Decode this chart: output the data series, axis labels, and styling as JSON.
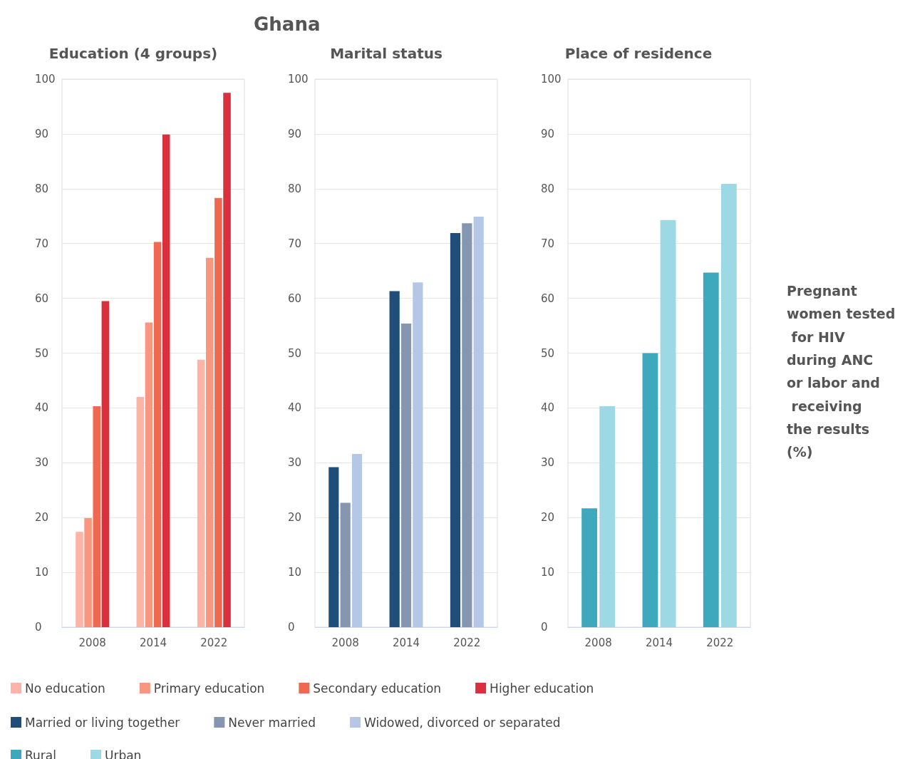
{
  "chart_data": [
    {
      "type": "bar",
      "title": "Education (4 groups)",
      "annotations": [
        "Ghana"
      ],
      "categories": [
        "2008",
        "2014",
        "2022"
      ],
      "series": [
        {
          "name": "No education",
          "color": "#fbb4a5",
          "values": [
            17.4,
            42.0,
            48.8
          ]
        },
        {
          "name": "Primary education",
          "color": "#f9967f",
          "values": [
            19.9,
            55.6,
            67.4
          ]
        },
        {
          "name": "Secondary education",
          "color": "#f0684f",
          "values": [
            40.3,
            70.3,
            78.3
          ]
        },
        {
          "name": "Higher education",
          "color": "#da2f3c",
          "values": [
            59.5,
            89.9,
            97.5
          ]
        }
      ],
      "ylim": [
        0,
        100
      ],
      "yticks": [
        0,
        10,
        20,
        30,
        40,
        50,
        60,
        70,
        80,
        90,
        100
      ],
      "grid": "y",
      "legend": "bottom"
    },
    {
      "type": "bar",
      "title": "Marital status",
      "categories": [
        "2008",
        "2014",
        "2022"
      ],
      "series": [
        {
          "name": "Married or living together",
          "color": "#1f4e79",
          "values": [
            29.2,
            61.3,
            71.9
          ]
        },
        {
          "name": "Never married",
          "color": "#8496b0",
          "values": [
            22.7,
            55.4,
            73.7
          ]
        },
        {
          "name": "Widowed, divorced or separated",
          "color": "#b4c7e7",
          "values": [
            31.6,
            62.9,
            74.9
          ]
        }
      ],
      "ylim": [
        0,
        100
      ],
      "yticks": [
        0,
        10,
        20,
        30,
        40,
        50,
        60,
        70,
        80,
        90,
        100
      ],
      "grid": "y",
      "legend": "bottom"
    },
    {
      "type": "bar",
      "title": "Place of residence",
      "annotations": [
        "Pregnant women tested for HIV during ANC or labor and receiving the results (%)"
      ],
      "categories": [
        "2008",
        "2014",
        "2022"
      ],
      "series": [
        {
          "name": "Rural",
          "color": "#3ea8bc",
          "values": [
            21.7,
            50.0,
            64.7
          ]
        },
        {
          "name": "Urban",
          "color": "#9dd9e4",
          "values": [
            40.3,
            74.3,
            80.9
          ]
        }
      ],
      "ylim": [
        0,
        100
      ],
      "yticks": [
        0,
        10,
        20,
        30,
        40,
        50,
        60,
        70,
        80,
        90,
        100
      ],
      "grid": "y",
      "legend": "bottom"
    }
  ]
}
